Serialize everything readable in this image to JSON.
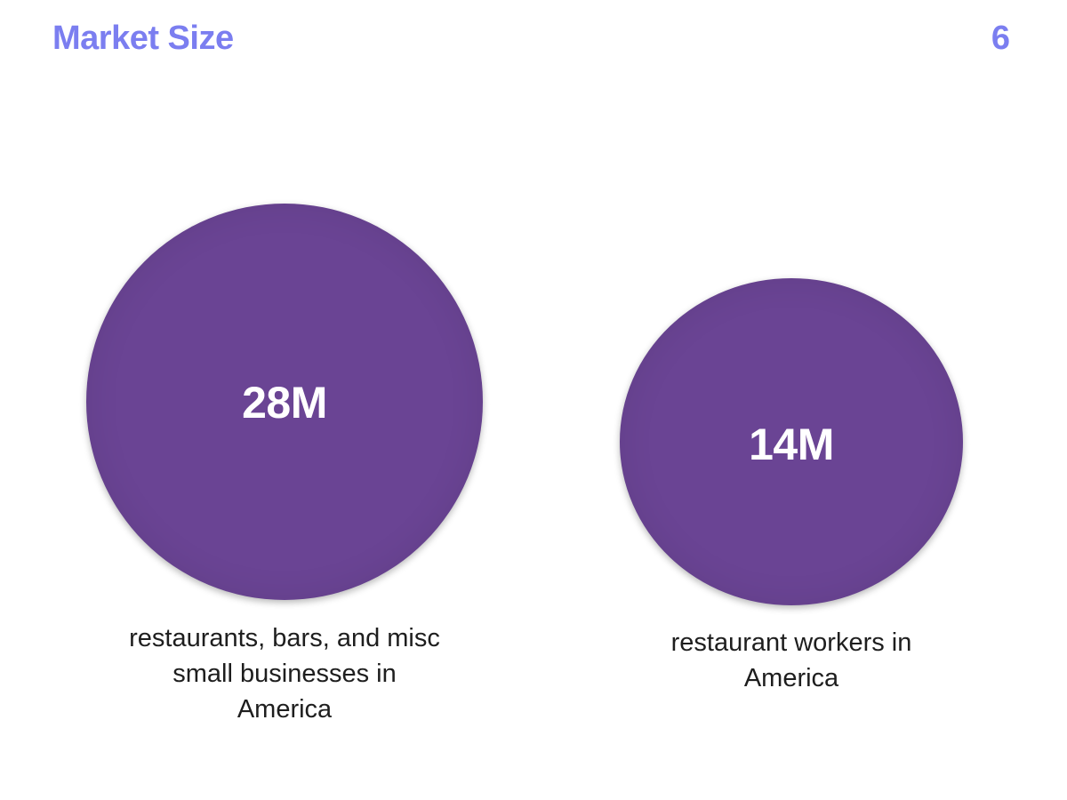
{
  "header": {
    "title": "Market Size",
    "page_number": "6"
  },
  "colors": {
    "title": "#7b7ef0",
    "circle_fill": "#6a4494"
  },
  "circles": [
    {
      "value": "28M",
      "caption_lines": [
        "restaurants, bars, and misc",
        "small businesses in",
        "America"
      ]
    },
    {
      "value": "14M",
      "caption_lines": [
        "restaurant workers in",
        "America"
      ]
    }
  ]
}
